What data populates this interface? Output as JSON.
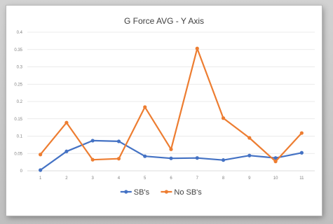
{
  "chart_data": {
    "type": "line",
    "title": "G Force AVG - Y Axis",
    "xlabel": "",
    "ylabel": "",
    "categories": [
      "1",
      "2",
      "3",
      "4",
      "5",
      "6",
      "7",
      "8",
      "9",
      "10",
      "11"
    ],
    "y_ticks": [
      "0",
      "0.05",
      "0.1",
      "0.15",
      "0.2",
      "0.25",
      "0.3",
      "0.35",
      "0.4"
    ],
    "ylim": [
      0,
      0.4
    ],
    "grid": true,
    "legend_position": "bottom",
    "series": [
      {
        "name": "SB's",
        "color": "#4472c4",
        "marker": "circle",
        "values": [
          0.002,
          0.056,
          0.087,
          0.085,
          0.042,
          0.036,
          0.037,
          0.031,
          0.044,
          0.037,
          0.052
        ]
      },
      {
        "name": "No SB's",
        "color": "#ed7d31",
        "marker": "circle",
        "values": [
          0.047,
          0.139,
          0.032,
          0.035,
          0.184,
          0.062,
          0.353,
          0.152,
          0.095,
          0.027,
          0.109
        ]
      }
    ]
  }
}
